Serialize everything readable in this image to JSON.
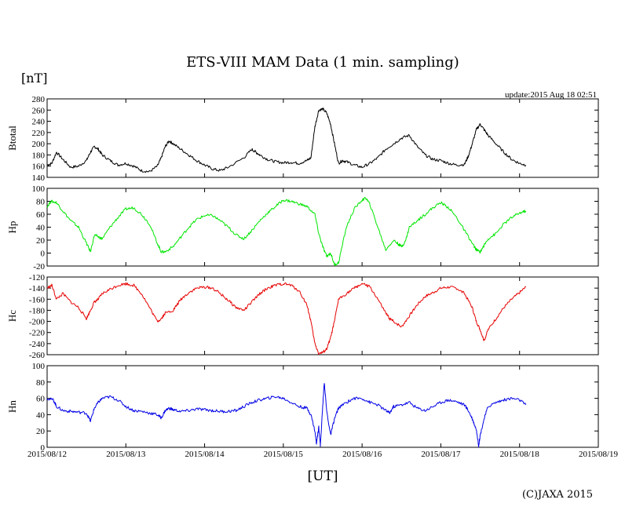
{
  "title": "ETS-VIII MAM Data (1 min. sampling)",
  "unit_label": "[nT]",
  "x_unit_label": "[UT]",
  "update_text": "update:2015 Aug 18 02:51",
  "copyright": "(C)JAXA 2015",
  "chart_data": [
    {
      "type": "line",
      "panel": "Btotal",
      "ylabel": "Btotal",
      "color": "#000000",
      "ylim": [
        140,
        280
      ],
      "yticks": [
        140,
        160,
        180,
        200,
        220,
        240,
        260,
        280
      ],
      "x": [
        12.0,
        12.06,
        12.12,
        12.2,
        12.3,
        12.4,
        12.5,
        12.55,
        12.6,
        12.65,
        12.7,
        12.8,
        12.9,
        13.0,
        13.1,
        13.2,
        13.3,
        13.4,
        13.45,
        13.5,
        13.55,
        13.6,
        13.7,
        13.8,
        13.9,
        14.0,
        14.1,
        14.2,
        14.3,
        14.5,
        14.6,
        14.65,
        14.7,
        14.8,
        14.9,
        15.0,
        15.1,
        15.2,
        15.3,
        15.35,
        15.4,
        15.45,
        15.5,
        15.55,
        15.6,
        15.65,
        15.7,
        15.75,
        15.8,
        15.9,
        16.0,
        16.1,
        16.2,
        16.3,
        16.4,
        16.5,
        16.6,
        16.7,
        16.8,
        16.9,
        17.0,
        17.1,
        17.2,
        17.3,
        17.35,
        17.4,
        17.45,
        17.5,
        17.55,
        17.6,
        17.7,
        17.8,
        17.9,
        18.0,
        18.08
      ],
      "y": [
        162,
        165,
        185,
        172,
        158,
        160,
        170,
        185,
        195,
        190,
        180,
        170,
        162,
        165,
        160,
        152,
        150,
        160,
        175,
        195,
        205,
        200,
        190,
        180,
        170,
        162,
        155,
        152,
        158,
        175,
        190,
        185,
        180,
        172,
        168,
        166,
        167,
        165,
        170,
        175,
        230,
        260,
        262,
        255,
        235,
        200,
        165,
        170,
        168,
        162,
        158,
        165,
        175,
        190,
        200,
        210,
        215,
        195,
        180,
        172,
        170,
        165,
        162,
        163,
        178,
        200,
        225,
        235,
        225,
        215,
        200,
        185,
        172,
        165,
        162
      ]
    },
    {
      "type": "line",
      "panel": "Hp",
      "ylabel": "Hp",
      "color": "#00e600",
      "ylim": [
        -20,
        100
      ],
      "yticks": [
        -20,
        0,
        20,
        40,
        60,
        80,
        100
      ],
      "x": [
        12.0,
        12.05,
        12.12,
        12.2,
        12.3,
        12.4,
        12.5,
        12.55,
        12.6,
        12.65,
        12.7,
        12.8,
        12.9,
        13.0,
        13.1,
        13.2,
        13.3,
        13.4,
        13.45,
        13.5,
        13.6,
        13.7,
        13.8,
        13.9,
        14.0,
        14.1,
        14.2,
        14.3,
        14.4,
        14.5,
        14.6,
        14.7,
        14.8,
        14.9,
        15.0,
        15.1,
        15.2,
        15.3,
        15.4,
        15.45,
        15.5,
        15.55,
        15.6,
        15.65,
        15.7,
        15.8,
        15.9,
        16.0,
        16.05,
        16.1,
        16.2,
        16.3,
        16.4,
        16.45,
        16.5,
        16.55,
        16.6,
        16.7,
        16.8,
        16.9,
        17.0,
        17.1,
        17.2,
        17.3,
        17.4,
        17.45,
        17.5,
        17.55,
        17.6,
        17.7,
        17.8,
        17.9,
        18.0,
        18.08
      ],
      "y": [
        72,
        80,
        78,
        65,
        50,
        40,
        15,
        2,
        28,
        25,
        22,
        40,
        55,
        68,
        70,
        60,
        45,
        15,
        2,
        2,
        10,
        25,
        40,
        52,
        58,
        58,
        50,
        40,
        28,
        22,
        35,
        50,
        62,
        72,
        82,
        80,
        76,
        72,
        60,
        30,
        10,
        -5,
        0,
        -18,
        -15,
        40,
        68,
        82,
        85,
        75,
        40,
        5,
        20,
        15,
        10,
        18,
        40,
        50,
        60,
        70,
        78,
        70,
        55,
        35,
        15,
        5,
        2,
        12,
        22,
        30,
        45,
        55,
        62,
        65
      ]
    },
    {
      "type": "line",
      "panel": "Hc",
      "ylabel": "Hc",
      "color": "#e60000",
      "ylim": [
        -260,
        -120
      ],
      "yticks": [
        -260,
        -240,
        -220,
        -200,
        -180,
        -160,
        -140,
        -120
      ],
      "x": [
        12.0,
        12.06,
        12.12,
        12.2,
        12.3,
        12.4,
        12.5,
        12.55,
        12.6,
        12.65,
        12.7,
        12.8,
        12.9,
        13.0,
        13.1,
        13.2,
        13.3,
        13.4,
        13.45,
        13.5,
        13.6,
        13.65,
        13.7,
        13.8,
        13.9,
        14.0,
        14.1,
        14.2,
        14.3,
        14.4,
        14.5,
        14.6,
        14.7,
        14.8,
        14.9,
        15.0,
        15.1,
        15.2,
        15.3,
        15.35,
        15.4,
        15.45,
        15.5,
        15.55,
        15.6,
        15.65,
        15.7,
        15.8,
        15.9,
        16.0,
        16.1,
        16.2,
        16.3,
        16.35,
        16.4,
        16.5,
        16.6,
        16.7,
        16.8,
        16.9,
        17.0,
        17.1,
        17.2,
        17.3,
        17.4,
        17.45,
        17.5,
        17.55,
        17.6,
        17.7,
        17.8,
        17.9,
        18.0,
        18.08
      ],
      "y": [
        -140,
        -135,
        -160,
        -150,
        -165,
        -175,
        -195,
        -180,
        -165,
        -160,
        -150,
        -142,
        -135,
        -132,
        -135,
        -150,
        -175,
        -200,
        -195,
        -185,
        -180,
        -170,
        -160,
        -148,
        -140,
        -138,
        -140,
        -150,
        -162,
        -175,
        -180,
        -165,
        -150,
        -140,
        -135,
        -132,
        -135,
        -145,
        -170,
        -200,
        -240,
        -258,
        -256,
        -250,
        -230,
        -200,
        -160,
        -150,
        -140,
        -132,
        -138,
        -160,
        -185,
        -195,
        -200,
        -210,
        -190,
        -170,
        -155,
        -148,
        -140,
        -138,
        -140,
        -150,
        -175,
        -200,
        -215,
        -235,
        -215,
        -195,
        -175,
        -160,
        -148,
        -138
      ]
    },
    {
      "type": "line",
      "panel": "Hn",
      "ylabel": "Hn",
      "color": "#0000e6",
      "ylim": [
        0,
        100
      ],
      "yticks": [
        0,
        20,
        40,
        60,
        80,
        100
      ],
      "x": [
        12.0,
        12.08,
        12.12,
        12.2,
        12.3,
        12.4,
        12.5,
        12.55,
        12.6,
        12.65,
        12.7,
        12.8,
        12.9,
        13.0,
        13.1,
        13.2,
        13.3,
        13.4,
        13.45,
        13.5,
        13.55,
        13.6,
        13.7,
        13.8,
        13.9,
        14.0,
        14.1,
        14.2,
        14.3,
        14.4,
        14.5,
        14.6,
        14.7,
        14.8,
        14.9,
        15.0,
        15.1,
        15.2,
        15.3,
        15.35,
        15.4,
        15.42,
        15.45,
        15.47,
        15.5,
        15.52,
        15.55,
        15.6,
        15.65,
        15.7,
        15.8,
        15.9,
        16.0,
        16.1,
        16.2,
        16.3,
        16.35,
        16.4,
        16.5,
        16.6,
        16.7,
        16.8,
        16.9,
        17.0,
        17.1,
        17.2,
        17.3,
        17.35,
        17.4,
        17.45,
        17.48,
        17.5,
        17.55,
        17.6,
        17.7,
        17.8,
        17.9,
        18.0,
        18.08
      ],
      "y": [
        60,
        58,
        50,
        45,
        44,
        43,
        42,
        32,
        48,
        55,
        60,
        62,
        58,
        50,
        45,
        44,
        42,
        40,
        36,
        45,
        48,
        46,
        44,
        45,
        47,
        46,
        45,
        44,
        44,
        45,
        50,
        55,
        58,
        60,
        62,
        60,
        55,
        50,
        48,
        40,
        20,
        5,
        25,
        2,
        50,
        80,
        45,
        15,
        35,
        48,
        55,
        60,
        60,
        55,
        52,
        45,
        42,
        50,
        52,
        55,
        48,
        45,
        50,
        55,
        58,
        56,
        52,
        45,
        35,
        22,
        2,
        15,
        35,
        50,
        55,
        58,
        60,
        58,
        52
      ]
    }
  ],
  "x_axis": {
    "range": [
      12,
      19
    ],
    "tick_labels": [
      "2015/08/12",
      "2015/08/13",
      "2015/08/14",
      "2015/08/15",
      "2015/08/16",
      "2015/08/17",
      "2015/08/18",
      "2015/08/19"
    ]
  }
}
